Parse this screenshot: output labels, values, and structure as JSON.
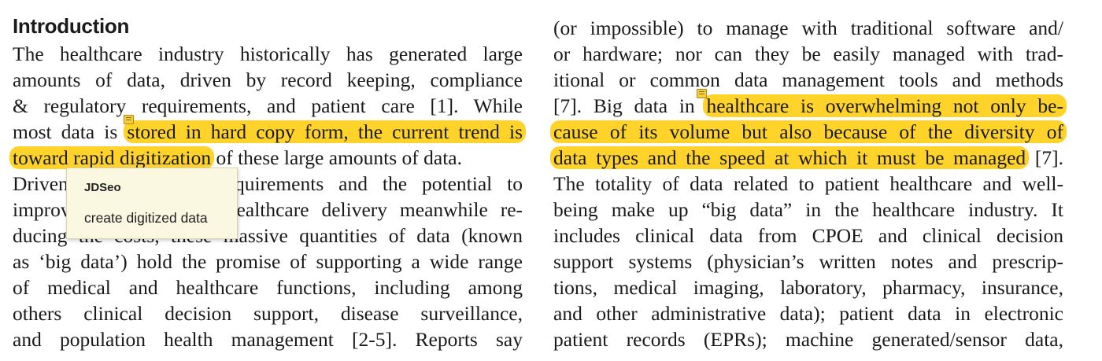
{
  "section_heading": "Introduction",
  "left_column": {
    "l1": "The healthcare industry historically has generated large",
    "l2": "amounts of data, driven by record keeping, compliance",
    "l3": "& regulatory requirements, and patient care [1]. While",
    "l4_pre": "most data is ",
    "l4_hl": "stored in hard copy form, the current trend is",
    "l5_hl": "toward rapid digitization",
    "l5_post": " of these large amounts of data.",
    "l6": "Driven by mandatory requirements and the potential to",
    "l7": "improve the quality of healthcare delivery meanwhile re-",
    "l8": "ducing the costs, these massive quantities of data (known",
    "l9": "as ‘big data’) hold the promise of supporting a wide range",
    "l10": "of medical and healthcare functions, including among",
    "l11": "others clinical decision support, disease surveillance,",
    "l12": "and population health management [2-5]. Reports say"
  },
  "right_column": {
    "l1": "(or impossible) to manage with traditional software and/",
    "l2": "or hardware; nor can they be easily managed with trad-",
    "l3": "itional or common data management tools and methods",
    "l4_pre": "[7]. Big data in ",
    "l4_hl": "healthcare is overwhelming not only be-",
    "l5_hl": "cause of its volume but also because of the diversity of",
    "l6_hl": "data types and the speed at which it must be managed",
    "l6_post": " [7].",
    "l7": "The totality of data related to patient healthcare and well-",
    "l8": "being make up “big data” in the healthcare industry. It",
    "l9": "includes clinical data from CPOE and clinical decision",
    "l10": "support systems (physician’s written notes and prescrip-",
    "l11": "tions, medical imaging, laboratory, pharmacy, insurance,",
    "l12": "and other administrative data); patient data in electronic",
    "l13": "patient records (EPRs); machine generated/sensor data,"
  },
  "comment_popup": {
    "author": "JDSeo",
    "text": "create digitized data"
  },
  "colors": {
    "highlight": "#ffd32a",
    "popup_background": "#fbf8e1",
    "note_icon": "#f4d03f"
  }
}
